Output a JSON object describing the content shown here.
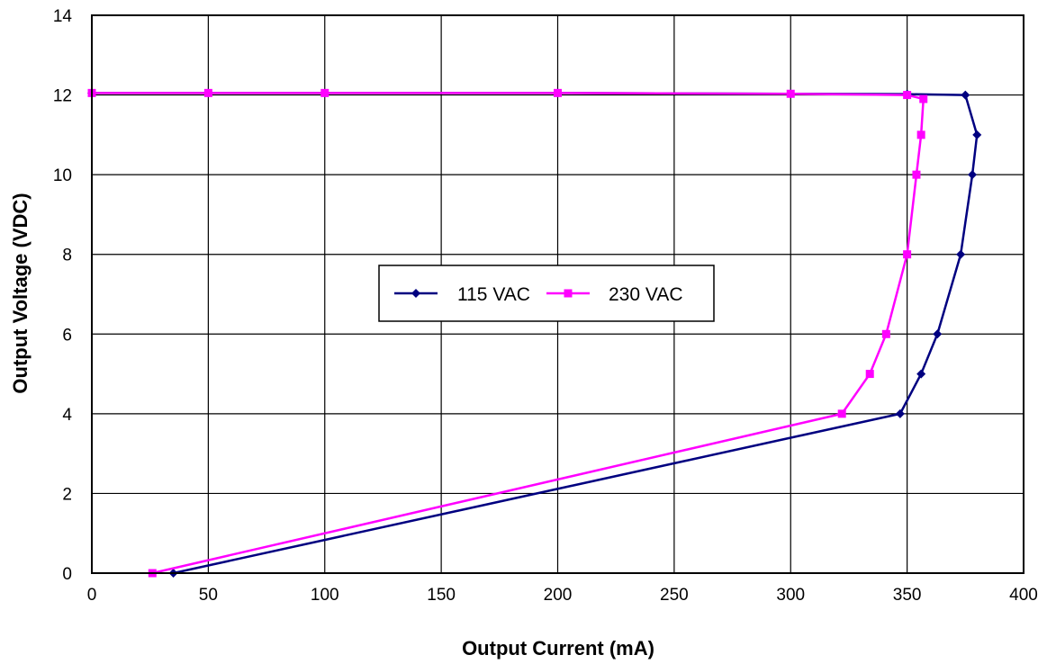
{
  "chart_data": {
    "type": "line",
    "title": "",
    "xlabel": "Output Current (mA)",
    "ylabel": "Output Voltage (VDC)",
    "xlim": [
      0,
      400
    ],
    "ylim": [
      0,
      14
    ],
    "xticks": [
      0,
      50,
      100,
      150,
      200,
      250,
      300,
      350,
      400
    ],
    "yticks": [
      0,
      2,
      4,
      6,
      8,
      10,
      12,
      14
    ],
    "grid": true,
    "legend_position": "center-right",
    "series": [
      {
        "name": "115 VAC",
        "color": "#000080",
        "marker": "diamond",
        "x": [
          0,
          50,
          100,
          200,
          300,
          350,
          375,
          380,
          378,
          373,
          363,
          356,
          347,
          35
        ],
        "y": [
          12.05,
          12.05,
          12.05,
          12.05,
          12.03,
          12.02,
          12.0,
          11.0,
          10.0,
          8.0,
          6.0,
          5.0,
          4.0,
          0.0
        ]
      },
      {
        "name": "230 VAC",
        "color": "#FF00FF",
        "marker": "square",
        "x": [
          0,
          50,
          100,
          200,
          300,
          350,
          357,
          356,
          354,
          350,
          341,
          334,
          322,
          26
        ],
        "y": [
          12.05,
          12.05,
          12.05,
          12.05,
          12.03,
          12.0,
          11.9,
          11.0,
          10.0,
          8.0,
          6.0,
          5.0,
          4.0,
          0.0
        ]
      }
    ]
  }
}
